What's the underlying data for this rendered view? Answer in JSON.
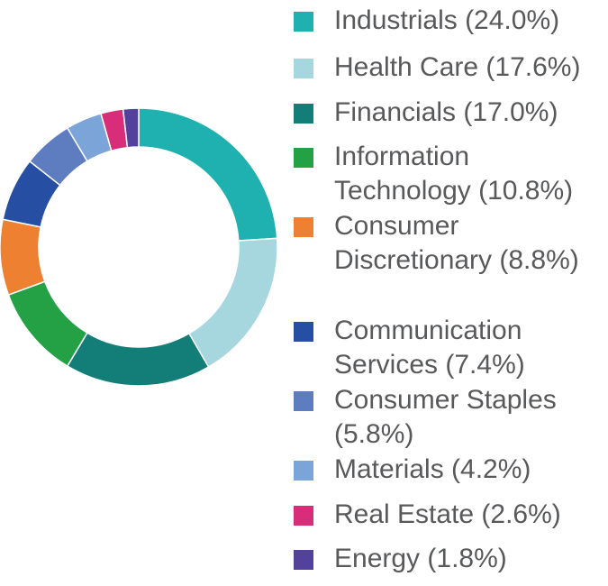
{
  "chart_data": {
    "type": "pie",
    "style": "donut",
    "slices": [
      {
        "name": "Industrials",
        "value": 24.0,
        "label": "Industrials (24.0%)",
        "color": "#1fb1b0"
      },
      {
        "name": "Health Care",
        "value": 17.6,
        "label": "Health Care (17.6%)",
        "color": "#a6d6de"
      },
      {
        "name": "Financials",
        "value": 17.0,
        "label": "Financials (17.0%)",
        "color": "#137e78"
      },
      {
        "name": "Information Technology",
        "value": 10.8,
        "label": "Information Technology (10.8%)",
        "color": "#24a145"
      },
      {
        "name": "Consumer Discretionary",
        "value": 8.8,
        "label": "Consumer Discretionary (8.8%)",
        "color": "#ee8131"
      },
      {
        "name": "Communication Services",
        "value": 7.4,
        "label": "Communication Services (7.4%)",
        "color": "#264ea2"
      },
      {
        "name": "Consumer Staples",
        "value": 5.8,
        "label": "Consumer Staples (5.8%)",
        "color": "#5d7dc0"
      },
      {
        "name": "Materials",
        "value": 4.2,
        "label": "Materials (4.2%)",
        "color": "#7ba4d8"
      },
      {
        "name": "Real Estate",
        "value": 2.6,
        "label": "Real Estate (2.6%)",
        "color": "#d82d78"
      },
      {
        "name": "Energy",
        "value": 1.8,
        "label": "Energy (1.8%)",
        "color": "#52429b"
      }
    ],
    "legend_position": "right"
  }
}
